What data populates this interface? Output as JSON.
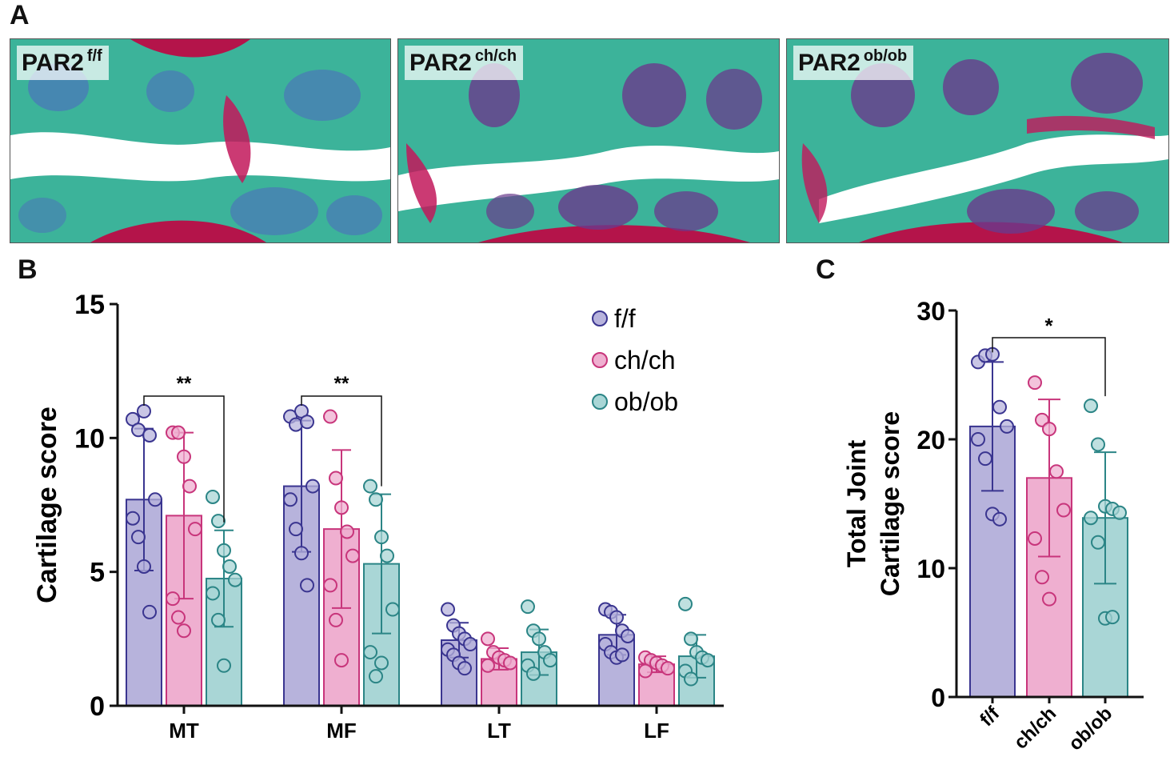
{
  "panels": {
    "a": "A",
    "b": "B",
    "c": "C"
  },
  "micrographs": [
    {
      "label": "PAR2",
      "sup": "f/f",
      "stain": "blue"
    },
    {
      "label": "PAR2",
      "sup": "ch/ch",
      "stain": "purple"
    },
    {
      "label": "PAR2",
      "sup": "ob/ob",
      "stain": "purple"
    }
  ],
  "colors": {
    "ff_fill": "#b7b3dc",
    "ff_line": "#3a3590",
    "ch_fill": "#efafd0",
    "ch_line": "#c8357b",
    "ob_fill": "#a9d6d6",
    "ob_line": "#2b8586",
    "tissue_green": "#3cb39a",
    "cartilage_red": "#b4144a",
    "marrow_blue": "#4a78b8",
    "marrow_purple": "#6a3a8c"
  },
  "chart_data": [
    {
      "type": "bar",
      "panel": "B",
      "ylabel": "Cartilage score",
      "xlabel": "",
      "ylim": [
        0,
        15
      ],
      "yticks": [
        "0",
        "5",
        "10",
        "15"
      ],
      "categories": [
        "MT",
        "MF",
        "LT",
        "LF"
      ],
      "legend": {
        "position": "top-right",
        "entries": [
          "f/f",
          "ch/ch",
          "ob/ob"
        ]
      },
      "series": [
        {
          "name": "f/f",
          "values": [
            7.7,
            8.2,
            2.45,
            2.65
          ],
          "sd": [
            2.65,
            2.45,
            0.65,
            0.75
          ],
          "points": [
            [
              10.7,
              10.3,
              11.0,
              10.1,
              7.7,
              7.0,
              6.3,
              5.2,
              3.5
            ],
            [
              10.8,
              10.5,
              11.0,
              10.6,
              8.2,
              7.7,
              6.6,
              5.7,
              4.5
            ],
            [
              3.6,
              3.0,
              2.7,
              2.5,
              2.3,
              2.1,
              1.9,
              1.6,
              1.4
            ],
            [
              3.6,
              3.5,
              3.3,
              2.8,
              2.6,
              2.3,
              2.0,
              1.8,
              1.9
            ]
          ]
        },
        {
          "name": "ch/ch",
          "values": [
            7.1,
            6.6,
            1.75,
            1.55
          ],
          "sd": [
            3.1,
            2.95,
            0.4,
            0.3
          ],
          "points": [
            [
              10.2,
              10.2,
              9.3,
              8.2,
              6.6,
              4.0,
              3.3,
              2.8
            ],
            [
              10.8,
              8.5,
              7.4,
              6.5,
              5.6,
              4.5,
              3.2,
              1.7
            ],
            [
              2.5,
              2.0,
              1.8,
              1.7,
              1.6,
              1.5
            ],
            [
              1.8,
              1.7,
              1.6,
              1.5,
              1.4,
              1.3
            ]
          ]
        },
        {
          "name": "ob/ob",
          "values": [
            4.75,
            5.3,
            2.0,
            1.85
          ],
          "sd": [
            1.8,
            2.6,
            0.85,
            0.8
          ],
          "points": [
            [
              7.8,
              6.9,
              5.8,
              5.2,
              4.7,
              4.2,
              3.2,
              1.5
            ],
            [
              8.2,
              7.7,
              6.3,
              5.6,
              3.6,
              2.0,
              1.1,
              1.6
            ],
            [
              3.7,
              2.8,
              2.5,
              2.0,
              1.7,
              1.5,
              1.2
            ],
            [
              3.8,
              2.5,
              2.0,
              1.8,
              1.7,
              1.3,
              1.0
            ]
          ]
        }
      ],
      "significance": [
        {
          "category": "MT",
          "from": "f/f",
          "to": "ob/ob",
          "label": "**"
        },
        {
          "category": "MF",
          "from": "f/f",
          "to": "ob/ob",
          "label": "**"
        }
      ]
    },
    {
      "type": "bar",
      "panel": "C",
      "ylabel_lines": [
        "Total Joint",
        "Cartilage score"
      ],
      "xlabel": "",
      "ylim": [
        0,
        30
      ],
      "yticks": [
        "0",
        "10",
        "20",
        "30"
      ],
      "categories": [
        "f/f",
        "ch/ch",
        "ob/ob"
      ],
      "values": [
        21.0,
        17.0,
        13.9
      ],
      "sd": [
        5.0,
        6.1,
        5.1
      ],
      "points": [
        [
          26.0,
          26.5,
          26.6,
          22.5,
          21.0,
          20.0,
          18.5,
          14.2,
          13.8
        ],
        [
          24.4,
          21.5,
          20.8,
          17.5,
          14.5,
          12.3,
          9.3,
          7.6
        ],
        [
          22.6,
          19.6,
          14.8,
          14.6,
          14.3,
          13.9,
          12.0,
          6.1,
          6.2
        ]
      ],
      "significance": [
        {
          "from": "f/f",
          "to": "ob/ob",
          "label": "*"
        }
      ]
    }
  ]
}
